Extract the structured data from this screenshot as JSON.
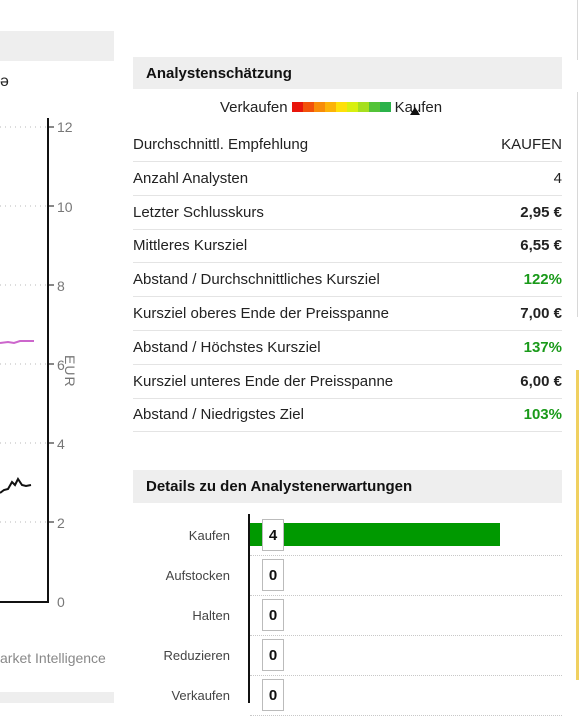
{
  "left_chart": {
    "y_ticks": [
      "12",
      "10",
      "8",
      "6",
      "4",
      "2",
      "0"
    ],
    "unit": "EUR",
    "source": "arket Intelligence",
    "line_color": "#111111",
    "target_line_color": "#cc66cc"
  },
  "estimate": {
    "title": "Analystenschätzung",
    "scale_left": "Verkaufen",
    "scale_right": "Kaufen",
    "scale_colors": [
      "#e8160c",
      "#f2520a",
      "#f88c08",
      "#fcb308",
      "#fee00a",
      "#d8ef10",
      "#a6df1e",
      "#53c338",
      "#2bb24a"
    ],
    "rows": [
      {
        "label": "Durchschnittl. Empfehlung",
        "value": "KAUFEN",
        "style": "plain"
      },
      {
        "label": "Anzahl Analysten",
        "value": "4",
        "style": "plain"
      },
      {
        "label": "Letzter Schlusskurs",
        "value": "2,95 €",
        "style": "bold"
      },
      {
        "label": "Mittleres Kursziel",
        "value": "6,55 €",
        "style": "bold"
      },
      {
        "label": "Abstand / Durchschnittliches Kursziel",
        "value": "122%",
        "style": "green"
      },
      {
        "label": "Kursziel oberes Ende der Preisspanne",
        "value": "7,00 €",
        "style": "bold"
      },
      {
        "label": "Abstand / Höchstes Kursziel",
        "value": "137%",
        "style": "green"
      },
      {
        "label": "Kursziel unteres Ende der Preisspanne",
        "value": "6,00 €",
        "style": "bold"
      },
      {
        "label": "Abstand / Niedrigstes Ziel",
        "value": "103%",
        "style": "green"
      }
    ]
  },
  "details": {
    "title": "Details zu den Analystenerwartungen",
    "bar_color": "#009900",
    "items": [
      {
        "label": "Kaufen",
        "count": "4",
        "share": 0.8
      },
      {
        "label": "Aufstocken",
        "count": "0",
        "share": 0
      },
      {
        "label": "Halten",
        "count": "0",
        "share": 0
      },
      {
        "label": "Reduzieren",
        "count": "0",
        "share": 0
      },
      {
        "label": "Verkaufen",
        "count": "0",
        "share": 0
      }
    ]
  }
}
